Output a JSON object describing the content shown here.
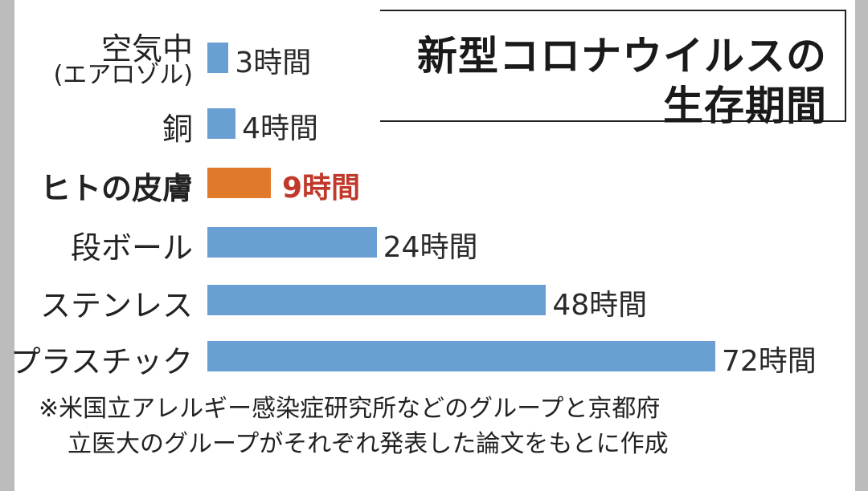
{
  "title": {
    "line1": "新型コロナウイルスの",
    "line2": "生存期間"
  },
  "chart_data": {
    "type": "bar",
    "orientation": "horizontal",
    "categories": [
      "空気中",
      "銅",
      "ヒトの皮膚",
      "段ボール",
      "ステンレス",
      "プラスチック"
    ],
    "category_sublabels": [
      "(エアロゾル)",
      "",
      "",
      "",
      "",
      ""
    ],
    "values": [
      3,
      4,
      9,
      24,
      48,
      72
    ],
    "unit": "時間",
    "value_labels": [
      "3時間",
      "4時間",
      "9時間",
      "24時間",
      "48時間",
      "72時間"
    ],
    "highlight_index": 2,
    "colors": {
      "bar": "#6a9fd4",
      "highlight": "#e07a2a",
      "highlight_text": "#c0392b"
    },
    "xlim": [
      0,
      72
    ],
    "grid": false,
    "legend": "none"
  },
  "footnote": {
    "line1": "※米国立アレルギー感染症研究所などのグループと京都府",
    "line2": "立医大のグループがそれぞれ発表した論文をもとに作成"
  }
}
